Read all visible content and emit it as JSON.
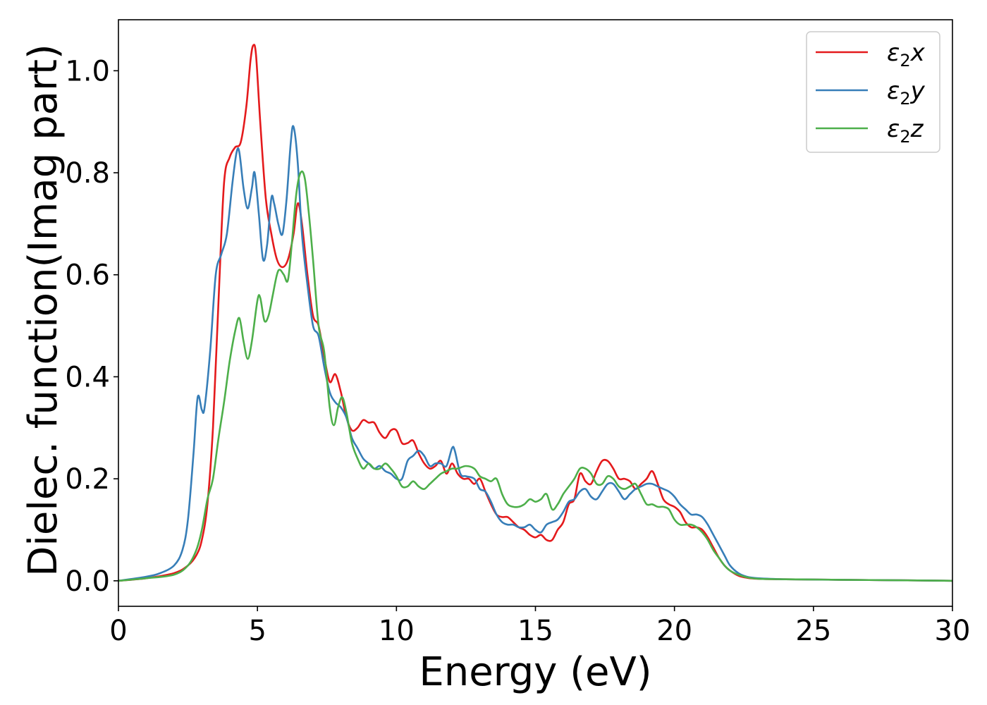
{
  "chart_data": {
    "type": "line",
    "xlabel": "Energy (eV)",
    "ylabel": "Dielec. function(Imag part)",
    "xlim": [
      0,
      30
    ],
    "ylim": [
      -0.05,
      1.1
    ],
    "xticks": [
      0,
      5,
      10,
      15,
      20,
      25,
      30
    ],
    "xtick_labels": [
      "0",
      "5",
      "10",
      "15",
      "20",
      "25",
      "30"
    ],
    "yticks": [
      0.0,
      0.2,
      0.4,
      0.6,
      0.8,
      1.0
    ],
    "ytick_labels": [
      "0.0",
      "0.2",
      "0.4",
      "0.6",
      "0.8",
      "1.0"
    ],
    "grid": false,
    "legend_position": "top-right",
    "series": [
      {
        "name": "ε₂x",
        "legend_base": "ε",
        "legend_sub": "2",
        "legend_suffix": "x",
        "color": "#e41a1c",
        "x": [
          0,
          1,
          2,
          2.5,
          2.8,
          3.0,
          3.2,
          3.4,
          3.6,
          3.8,
          4.0,
          4.2,
          4.4,
          4.6,
          4.75,
          4.85,
          4.95,
          5.1,
          5.3,
          5.5,
          5.7,
          5.9,
          6.1,
          6.3,
          6.45,
          6.6,
          6.8,
          7.0,
          7.2,
          7.4,
          7.6,
          7.8,
          8.0,
          8.2,
          8.4,
          8.6,
          8.8,
          9.0,
          9.2,
          9.4,
          9.6,
          9.8,
          10.0,
          10.2,
          10.4,
          10.6,
          10.8,
          11.0,
          11.2,
          11.4,
          11.6,
          11.8,
          12.0,
          12.2,
          12.4,
          12.6,
          12.8,
          13.0,
          13.2,
          13.4,
          13.6,
          13.8,
          14.0,
          14.2,
          14.4,
          14.6,
          14.8,
          15.0,
          15.2,
          15.4,
          15.6,
          15.8,
          16.0,
          16.2,
          16.4,
          16.6,
          16.8,
          17.0,
          17.2,
          17.4,
          17.6,
          17.8,
          18.0,
          18.2,
          18.4,
          18.6,
          18.8,
          19.0,
          19.2,
          19.4,
          19.6,
          19.8,
          20.0,
          20.2,
          20.4,
          20.6,
          20.8,
          21.0,
          21.2,
          21.4,
          21.6,
          21.8,
          22.0,
          22.3,
          22.6,
          23.0,
          24,
          26,
          28,
          30
        ],
        "y": [
          0.0,
          0.005,
          0.015,
          0.03,
          0.05,
          0.08,
          0.15,
          0.3,
          0.55,
          0.78,
          0.83,
          0.85,
          0.86,
          0.93,
          1.02,
          1.05,
          1.03,
          0.9,
          0.75,
          0.68,
          0.63,
          0.615,
          0.63,
          0.68,
          0.74,
          0.7,
          0.6,
          0.52,
          0.5,
          0.44,
          0.39,
          0.405,
          0.37,
          0.32,
          0.295,
          0.3,
          0.315,
          0.31,
          0.31,
          0.29,
          0.28,
          0.295,
          0.295,
          0.27,
          0.27,
          0.275,
          0.25,
          0.23,
          0.22,
          0.225,
          0.235,
          0.21,
          0.23,
          0.21,
          0.2,
          0.2,
          0.19,
          0.2,
          0.175,
          0.15,
          0.13,
          0.125,
          0.125,
          0.115,
          0.105,
          0.1,
          0.09,
          0.085,
          0.09,
          0.08,
          0.08,
          0.1,
          0.115,
          0.15,
          0.16,
          0.21,
          0.195,
          0.19,
          0.215,
          0.235,
          0.235,
          0.22,
          0.2,
          0.2,
          0.195,
          0.18,
          0.19,
          0.2,
          0.215,
          0.19,
          0.16,
          0.15,
          0.145,
          0.135,
          0.115,
          0.105,
          0.105,
          0.1,
          0.085,
          0.065,
          0.045,
          0.03,
          0.02,
          0.01,
          0.006,
          0.004,
          0.003,
          0.002,
          0.001,
          0.0
        ]
      },
      {
        "name": "ε₂y",
        "legend_base": "ε",
        "legend_sub": "2",
        "legend_suffix": "y",
        "color": "#377eb8",
        "x": [
          0,
          1,
          1.5,
          2.0,
          2.3,
          2.5,
          2.7,
          2.85,
          3.0,
          3.1,
          3.3,
          3.5,
          3.7,
          3.9,
          4.1,
          4.25,
          4.35,
          4.5,
          4.65,
          4.8,
          4.9,
          5.05,
          5.2,
          5.35,
          5.5,
          5.6,
          5.75,
          5.9,
          6.05,
          6.2,
          6.3,
          6.45,
          6.6,
          6.8,
          7.0,
          7.2,
          7.4,
          7.6,
          7.8,
          8.0,
          8.2,
          8.4,
          8.6,
          8.8,
          9.0,
          9.2,
          9.4,
          9.6,
          9.8,
          10.0,
          10.2,
          10.4,
          10.6,
          10.8,
          11.0,
          11.2,
          11.4,
          11.6,
          11.8,
          12.0,
          12.1,
          12.3,
          12.5,
          12.8,
          13.0,
          13.2,
          13.4,
          13.6,
          13.8,
          14.0,
          14.2,
          14.4,
          14.6,
          14.8,
          15.0,
          15.2,
          15.4,
          15.6,
          15.8,
          16.0,
          16.2,
          16.4,
          16.6,
          16.8,
          17.0,
          17.2,
          17.4,
          17.6,
          17.8,
          18.0,
          18.2,
          18.4,
          18.6,
          18.8,
          19.0,
          19.2,
          19.4,
          19.6,
          19.8,
          20.0,
          20.2,
          20.4,
          20.6,
          20.8,
          21.0,
          21.2,
          21.4,
          21.6,
          21.8,
          22.0,
          22.3,
          22.6,
          23.0,
          24,
          26,
          28,
          30
        ],
        "y": [
          0.0,
          0.008,
          0.015,
          0.03,
          0.06,
          0.12,
          0.25,
          0.36,
          0.335,
          0.34,
          0.45,
          0.6,
          0.64,
          0.68,
          0.78,
          0.84,
          0.84,
          0.77,
          0.73,
          0.77,
          0.8,
          0.72,
          0.63,
          0.66,
          0.75,
          0.74,
          0.7,
          0.68,
          0.75,
          0.86,
          0.89,
          0.82,
          0.68,
          0.58,
          0.5,
          0.48,
          0.42,
          0.37,
          0.35,
          0.34,
          0.32,
          0.28,
          0.26,
          0.24,
          0.23,
          0.22,
          0.225,
          0.215,
          0.21,
          0.2,
          0.2,
          0.235,
          0.245,
          0.255,
          0.245,
          0.225,
          0.23,
          0.23,
          0.225,
          0.26,
          0.255,
          0.21,
          0.205,
          0.2,
          0.18,
          0.175,
          0.155,
          0.13,
          0.115,
          0.11,
          0.11,
          0.105,
          0.105,
          0.11,
          0.1,
          0.095,
          0.11,
          0.115,
          0.12,
          0.135,
          0.155,
          0.16,
          0.175,
          0.18,
          0.165,
          0.16,
          0.175,
          0.19,
          0.19,
          0.175,
          0.16,
          0.17,
          0.18,
          0.185,
          0.19,
          0.19,
          0.185,
          0.18,
          0.175,
          0.165,
          0.15,
          0.14,
          0.13,
          0.13,
          0.125,
          0.11,
          0.09,
          0.07,
          0.05,
          0.03,
          0.015,
          0.008,
          0.005,
          0.003,
          0.002,
          0.001,
          0.0
        ]
      },
      {
        "name": "ε₂z",
        "legend_base": "ε",
        "legend_sub": "2",
        "legend_suffix": "z",
        "color": "#4daf4a",
        "x": [
          0,
          1,
          2,
          2.5,
          2.8,
          3.0,
          3.2,
          3.4,
          3.6,
          3.8,
          4.0,
          4.2,
          4.35,
          4.5,
          4.65,
          4.8,
          5.0,
          5.1,
          5.25,
          5.4,
          5.55,
          5.7,
          5.8,
          5.95,
          6.1,
          6.25,
          6.4,
          6.55,
          6.7,
          6.85,
          7.0,
          7.2,
          7.4,
          7.6,
          7.75,
          7.9,
          8.05,
          8.2,
          8.4,
          8.6,
          8.8,
          9.0,
          9.2,
          9.4,
          9.6,
          9.8,
          10.0,
          10.2,
          10.4,
          10.6,
          10.8,
          11.0,
          11.2,
          11.4,
          11.6,
          11.8,
          12.0,
          12.2,
          12.5,
          12.8,
          13.0,
          13.2,
          13.4,
          13.6,
          13.8,
          14.0,
          14.2,
          14.4,
          14.6,
          14.8,
          15.0,
          15.2,
          15.4,
          15.6,
          15.8,
          16.0,
          16.2,
          16.4,
          16.6,
          16.8,
          17.0,
          17.2,
          17.4,
          17.6,
          17.8,
          18.0,
          18.2,
          18.4,
          18.6,
          18.8,
          19.0,
          19.2,
          19.4,
          19.6,
          19.8,
          20.0,
          20.2,
          20.4,
          20.6,
          20.8,
          21.0,
          21.2,
          21.4,
          21.6,
          21.8,
          22.0,
          22.3,
          22.6,
          23.0,
          24,
          26,
          28,
          30
        ],
        "y": [
          0.0,
          0.005,
          0.012,
          0.03,
          0.06,
          0.1,
          0.16,
          0.2,
          0.28,
          0.35,
          0.43,
          0.49,
          0.515,
          0.47,
          0.435,
          0.47,
          0.55,
          0.555,
          0.51,
          0.52,
          0.56,
          0.6,
          0.61,
          0.6,
          0.59,
          0.67,
          0.76,
          0.8,
          0.79,
          0.72,
          0.63,
          0.5,
          0.45,
          0.34,
          0.305,
          0.34,
          0.36,
          0.33,
          0.27,
          0.24,
          0.22,
          0.23,
          0.22,
          0.22,
          0.23,
          0.22,
          0.205,
          0.185,
          0.185,
          0.195,
          0.185,
          0.18,
          0.19,
          0.2,
          0.21,
          0.215,
          0.22,
          0.22,
          0.225,
          0.22,
          0.205,
          0.2,
          0.195,
          0.2,
          0.17,
          0.15,
          0.145,
          0.145,
          0.15,
          0.16,
          0.155,
          0.16,
          0.17,
          0.14,
          0.15,
          0.17,
          0.185,
          0.2,
          0.22,
          0.22,
          0.21,
          0.19,
          0.19,
          0.205,
          0.2,
          0.185,
          0.18,
          0.185,
          0.19,
          0.17,
          0.15,
          0.15,
          0.145,
          0.145,
          0.14,
          0.12,
          0.11,
          0.11,
          0.11,
          0.105,
          0.095,
          0.08,
          0.06,
          0.045,
          0.03,
          0.02,
          0.012,
          0.007,
          0.004,
          0.003,
          0.002,
          0.001,
          0.0
        ]
      }
    ]
  }
}
